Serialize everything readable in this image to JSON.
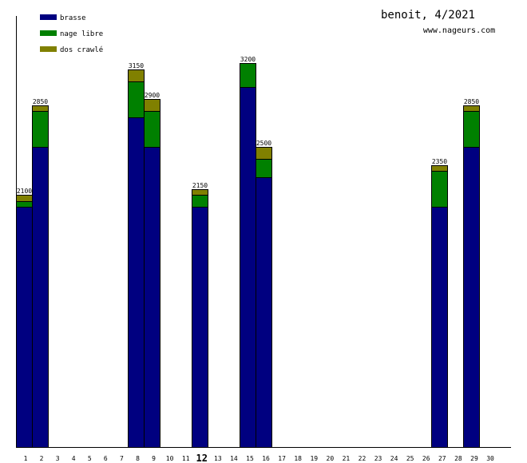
{
  "chart_data": {
    "type": "bar",
    "stacked": true,
    "title": "benoit, 4/2021",
    "subtitle": "www.nageurs.com",
    "xlabel": "",
    "ylabel": "",
    "ylim": [
      0,
      3600
    ],
    "highlight_category": "12",
    "categories": [
      "1",
      "2",
      "3",
      "4",
      "5",
      "6",
      "7",
      "8",
      "9",
      "10",
      "11",
      "12",
      "13",
      "14",
      "15",
      "16",
      "17",
      "18",
      "19",
      "20",
      "21",
      "22",
      "23",
      "24",
      "25",
      "26",
      "27",
      "28",
      "29",
      "30"
    ],
    "series": [
      {
        "name": "brasse",
        "color": "#000080",
        "values": [
          2000,
          2500,
          0,
          0,
          0,
          0,
          0,
          2750,
          2500,
          0,
          0,
          2000,
          0,
          0,
          3000,
          2250,
          0,
          0,
          0,
          0,
          0,
          0,
          0,
          0,
          0,
          0,
          2000,
          0,
          2500,
          0
        ]
      },
      {
        "name": "nage libre",
        "color": "#008000",
        "values": [
          50,
          300,
          0,
          0,
          0,
          0,
          0,
          300,
          300,
          0,
          0,
          100,
          0,
          0,
          200,
          150,
          0,
          0,
          0,
          0,
          0,
          0,
          0,
          0,
          0,
          0,
          300,
          0,
          300,
          0
        ]
      },
      {
        "name": "dos crawlé",
        "color": "#808000",
        "values": [
          50,
          50,
          0,
          0,
          0,
          0,
          0,
          100,
          100,
          0,
          0,
          50,
          0,
          0,
          0,
          100,
          0,
          0,
          0,
          0,
          0,
          0,
          0,
          0,
          0,
          0,
          50,
          0,
          50,
          0
        ]
      }
    ],
    "totals": [
      "2100",
      "2850",
      "",
      "",
      "",
      "",
      "",
      "3150",
      "2900",
      "",
      "",
      "2150",
      "",
      "",
      "3200",
      "2500",
      "",
      "",
      "",
      "",
      "",
      "",
      "",
      "",
      "",
      "",
      "2350",
      "",
      "2850",
      ""
    ],
    "legend_position": "top-left",
    "grid": false
  }
}
